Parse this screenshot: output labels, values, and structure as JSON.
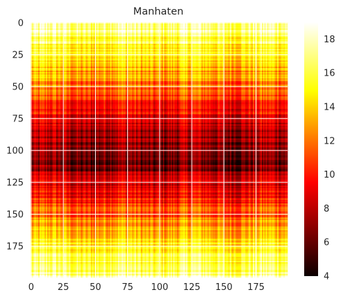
{
  "chart_data": {
    "type": "heatmap",
    "title": "Manhaten",
    "xlabel": "",
    "ylabel": "",
    "n_rows": 200,
    "n_cols": 200,
    "xlim": [
      0,
      199
    ],
    "ylim": [
      199,
      0
    ],
    "x_ticks": [
      0,
      25,
      50,
      75,
      100,
      125,
      150,
      175
    ],
    "y_ticks": [
      0,
      25,
      50,
      75,
      100,
      125,
      150,
      175
    ],
    "colormap": "hot",
    "colorbar": {
      "range": [
        4,
        19
      ],
      "ticks": [
        4,
        6,
        8,
        10,
        12,
        14,
        16,
        18
      ]
    },
    "grid": true,
    "grid_color": "#ffffff",
    "row_profile": [
      {
        "row": 0,
        "value": 17.5
      },
      {
        "row": 15,
        "value": 16.0
      },
      {
        "row": 25,
        "value": 14.5
      },
      {
        "row": 40,
        "value": 13.0
      },
      {
        "row": 55,
        "value": 11.0
      },
      {
        "row": 70,
        "value": 9.5
      },
      {
        "row": 85,
        "value": 7.5
      },
      {
        "row": 95,
        "value": 6.8
      },
      {
        "row": 105,
        "value": 6.0
      },
      {
        "row": 115,
        "value": 6.8
      },
      {
        "row": 125,
        "value": 8.0
      },
      {
        "row": 135,
        "value": 9.5
      },
      {
        "row": 150,
        "value": 11.5
      },
      {
        "row": 165,
        "value": 14.0
      },
      {
        "row": 180,
        "value": 16.0
      },
      {
        "row": 199,
        "value": 17.5
      }
    ]
  }
}
